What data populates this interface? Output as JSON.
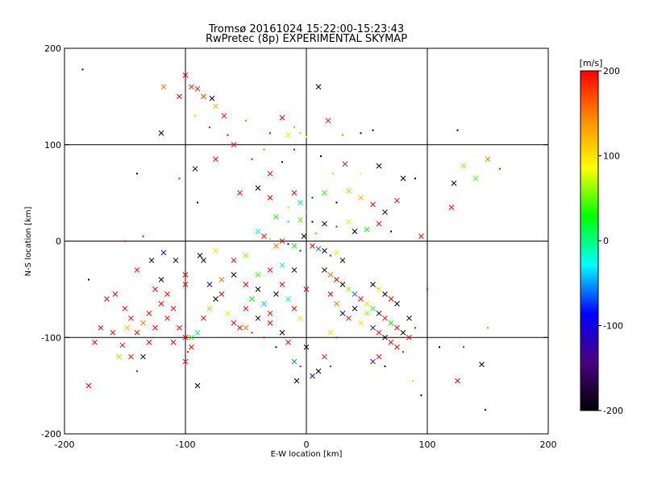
{
  "colors": {
    "background": "#ffffff",
    "axes": "#000000",
    "grid": "#000000",
    "colorbar_stops": [
      "#000000",
      "#4b0082",
      "#0000ff",
      "#00ffff",
      "#00ff00",
      "#ffff00",
      "#ff8c00",
      "#ff0000"
    ]
  },
  "chart_data": {
    "type": "scatter",
    "title": "Tromsø 20161024 15:22:00-15:23:43",
    "subtitle": "RwPretec (8p) EXPERIMENTAL SKYMAP",
    "xlabel": "E-W location [km]",
    "ylabel": "N-S location [km]",
    "xlim": [
      -200,
      200
    ],
    "ylim": [
      -200,
      200
    ],
    "xticks": [
      "-200",
      "-100",
      "0",
      "100",
      "200"
    ],
    "yticks": [
      "-200",
      "-100",
      "0",
      "100",
      "200"
    ],
    "grid": true,
    "colorbar": {
      "label": "[m/s]",
      "range": [
        -200,
        200
      ],
      "ticks": [
        "-200",
        "-100",
        "0",
        "100",
        "200"
      ]
    },
    "marker_legend": "x = large marker, dot = small marker",
    "points": [
      [
        -185,
        178,
        -200,
        0
      ],
      [
        -118,
        160,
        150,
        1
      ],
      [
        -105,
        150,
        200,
        1
      ],
      [
        -100,
        172,
        200,
        1
      ],
      [
        -95,
        160,
        180,
        1
      ],
      [
        -90,
        158,
        200,
        1
      ],
      [
        -85,
        150,
        170,
        1
      ],
      [
        -78,
        148,
        -200,
        1
      ],
      [
        -75,
        140,
        120,
        1
      ],
      [
        -68,
        130,
        200,
        1
      ],
      [
        -120,
        112,
        -200,
        1
      ],
      [
        -92,
        130,
        60,
        0
      ],
      [
        -80,
        118,
        200,
        0
      ],
      [
        -60,
        100,
        200,
        1
      ],
      [
        -45,
        85,
        200,
        0
      ],
      [
        -35,
        95,
        150,
        0
      ],
      [
        -30,
        112,
        200,
        0
      ],
      [
        -20,
        128,
        200,
        1
      ],
      [
        -15,
        110,
        100,
        1
      ],
      [
        -10,
        118,
        40,
        0
      ],
      [
        -5,
        112,
        120,
        0
      ],
      [
        0,
        108,
        80,
        0
      ],
      [
        10,
        160,
        -200,
        1
      ],
      [
        18,
        125,
        200,
        1
      ],
      [
        30,
        110,
        150,
        0
      ],
      [
        45,
        112,
        -200,
        0
      ],
      [
        55,
        115,
        -200,
        0
      ],
      [
        125,
        115,
        -200,
        0
      ],
      [
        150,
        85,
        150,
        1
      ],
      [
        130,
        78,
        60,
        1
      ],
      [
        140,
        65,
        50,
        1
      ],
      [
        160,
        75,
        200,
        0
      ],
      [
        122,
        60,
        -200,
        1
      ],
      [
        120,
        35,
        200,
        1
      ],
      [
        90,
        65,
        -200,
        0
      ],
      [
        80,
        65,
        -200,
        1
      ],
      [
        60,
        78,
        -200,
        1
      ],
      [
        45,
        70,
        80,
        0
      ],
      [
        -92,
        75,
        -200,
        1
      ],
      [
        -75,
        85,
        200,
        1
      ],
      [
        -140,
        70,
        -200,
        0
      ],
      [
        -105,
        65,
        200,
        0
      ],
      [
        -90,
        40,
        -200,
        0
      ],
      [
        -55,
        50,
        200,
        1
      ],
      [
        -40,
        55,
        -200,
        1
      ],
      [
        -30,
        45,
        200,
        1
      ],
      [
        -15,
        35,
        60,
        0
      ],
      [
        -10,
        50,
        200,
        1
      ],
      [
        -5,
        40,
        0,
        1
      ],
      [
        0,
        30,
        -30,
        0
      ],
      [
        5,
        45,
        -80,
        0
      ],
      [
        15,
        50,
        40,
        1
      ],
      [
        25,
        40,
        -200,
        0
      ],
      [
        35,
        52,
        60,
        1
      ],
      [
        45,
        45,
        120,
        1
      ],
      [
        55,
        38,
        200,
        1
      ],
      [
        65,
        30,
        -200,
        1
      ],
      [
        75,
        42,
        200,
        1
      ],
      [
        -25,
        25,
        30,
        1
      ],
      [
        -15,
        20,
        -40,
        0
      ],
      [
        -5,
        22,
        50,
        1
      ],
      [
        5,
        20,
        -200,
        0
      ],
      [
        15,
        18,
        -200,
        1
      ],
      [
        25,
        15,
        200,
        0
      ],
      [
        35,
        20,
        100,
        1
      ],
      [
        40,
        10,
        -200,
        1
      ],
      [
        50,
        12,
        30,
        1
      ],
      [
        60,
        18,
        200,
        1
      ],
      [
        70,
        10,
        -200,
        0
      ],
      [
        95,
        5,
        200,
        1
      ],
      [
        -40,
        10,
        -20,
        1
      ],
      [
        -35,
        5,
        200,
        1
      ],
      [
        -30,
        2,
        60,
        0
      ],
      [
        -25,
        -5,
        150,
        1
      ],
      [
        -20,
        0,
        200,
        1
      ],
      [
        -15,
        -3,
        -200,
        0
      ],
      [
        -10,
        -5,
        20,
        1
      ],
      [
        -5,
        -10,
        -80,
        0
      ],
      [
        5,
        -5,
        200,
        1
      ],
      [
        10,
        -8,
        -60,
        1
      ],
      [
        15,
        -10,
        -200,
        1
      ],
      [
        20,
        -15,
        200,
        0
      ],
      [
        25,
        -12,
        80,
        1
      ],
      [
        30,
        -20,
        -200,
        1
      ],
      [
        -140,
        -30,
        200,
        1
      ],
      [
        -128,
        -20,
        -200,
        1
      ],
      [
        -118,
        -12,
        -80,
        1
      ],
      [
        -108,
        -20,
        -200,
        1
      ],
      [
        -100,
        -35,
        200,
        1
      ],
      [
        -165,
        -60,
        200,
        1
      ],
      [
        -158,
        -55,
        200,
        1
      ],
      [
        -150,
        -70,
        200,
        1
      ],
      [
        -145,
        -80,
        200,
        1
      ],
      [
        -140,
        -95,
        200,
        1
      ],
      [
        -135,
        -85,
        150,
        1
      ],
      [
        -130,
        -75,
        200,
        1
      ],
      [
        -125,
        -90,
        200,
        1
      ],
      [
        -120,
        -65,
        200,
        1
      ],
      [
        -115,
        -80,
        200,
        1
      ],
      [
        -110,
        -70,
        200,
        1
      ],
      [
        -105,
        -90,
        200,
        1
      ],
      [
        -100,
        -100,
        200,
        1
      ],
      [
        -95,
        -110,
        200,
        1
      ],
      [
        -90,
        -95,
        0,
        1
      ],
      [
        -85,
        -80,
        200,
        1
      ],
      [
        -80,
        -70,
        60,
        1
      ],
      [
        -75,
        -60,
        -200,
        1
      ],
      [
        -70,
        -55,
        200,
        1
      ],
      [
        -65,
        -75,
        100,
        1
      ],
      [
        -60,
        -85,
        200,
        1
      ],
      [
        -55,
        -90,
        200,
        1
      ],
      [
        -50,
        -70,
        200,
        1
      ],
      [
        -45,
        -60,
        30,
        1
      ],
      [
        -40,
        -50,
        -200,
        1
      ],
      [
        -35,
        -65,
        -40,
        1
      ],
      [
        -30,
        -75,
        200,
        1
      ],
      [
        -25,
        -55,
        -200,
        1
      ],
      [
        -20,
        -45,
        200,
        1
      ],
      [
        -15,
        -60,
        -20,
        1
      ],
      [
        -10,
        -70,
        200,
        1
      ],
      [
        -5,
        -80,
        100,
        1
      ],
      [
        0,
        -50,
        200,
        1
      ],
      [
        -80,
        -45,
        -100,
        1
      ],
      [
        -70,
        -40,
        150,
        1
      ],
      [
        -60,
        -35,
        -200,
        1
      ],
      [
        -50,
        -45,
        200,
        1
      ],
      [
        -40,
        -35,
        40,
        1
      ],
      [
        -30,
        -30,
        200,
        1
      ],
      [
        -20,
        -25,
        0,
        1
      ],
      [
        -10,
        -30,
        -200,
        1
      ],
      [
        -60,
        -20,
        200,
        1
      ],
      [
        -50,
        -15,
        60,
        1
      ],
      [
        -88,
        -15,
        -200,
        1
      ],
      [
        -75,
        -10,
        100,
        1
      ],
      [
        -180,
        -150,
        200,
        1
      ],
      [
        -175,
        -105,
        200,
        1
      ],
      [
        -170,
        -90,
        200,
        1
      ],
      [
        -155,
        -120,
        60,
        1
      ],
      [
        -148,
        -90,
        120,
        1
      ],
      [
        -145,
        -120,
        200,
        1
      ],
      [
        -140,
        -135,
        200,
        0
      ],
      [
        -135,
        -120,
        -200,
        1
      ],
      [
        -130,
        -105,
        200,
        1
      ],
      [
        -100,
        -125,
        200,
        1
      ],
      [
        -95,
        -100,
        40,
        1
      ],
      [
        -90,
        -150,
        -200,
        1
      ],
      [
        -98,
        -115,
        200,
        0
      ],
      [
        -110,
        -105,
        200,
        1
      ],
      [
        -50,
        -90,
        150,
        1
      ],
      [
        -45,
        -95,
        200,
        0
      ],
      [
        -40,
        -80,
        -200,
        1
      ],
      [
        -35,
        -100,
        200,
        0
      ],
      [
        -30,
        -85,
        200,
        1
      ],
      [
        -25,
        -110,
        -200,
        0
      ],
      [
        -20,
        -95,
        -200,
        1
      ],
      [
        -15,
        -105,
        200,
        1
      ],
      [
        -10,
        -125,
        -60,
        1
      ],
      [
        -5,
        -130,
        200,
        0
      ],
      [
        0,
        -110,
        -200,
        1
      ],
      [
        5,
        -140,
        -100,
        1
      ],
      [
        10,
        -135,
        -200,
        1
      ],
      [
        15,
        -120,
        200,
        1
      ],
      [
        20,
        -130,
        200,
        0
      ],
      [
        -8,
        -145,
        -200,
        1
      ],
      [
        15,
        -30,
        -200,
        1
      ],
      [
        20,
        -35,
        150,
        1
      ],
      [
        25,
        -40,
        200,
        1
      ],
      [
        30,
        -45,
        -200,
        1
      ],
      [
        35,
        -50,
        60,
        1
      ],
      [
        40,
        -55,
        -60,
        1
      ],
      [
        45,
        -60,
        200,
        1
      ],
      [
        50,
        -65,
        100,
        1
      ],
      [
        55,
        -70,
        40,
        1
      ],
      [
        60,
        -75,
        -200,
        1
      ],
      [
        65,
        -80,
        200,
        1
      ],
      [
        70,
        -85,
        30,
        1
      ],
      [
        75,
        -90,
        200,
        1
      ],
      [
        80,
        -95,
        -200,
        1
      ],
      [
        85,
        -100,
        200,
        1
      ],
      [
        20,
        -55,
        200,
        1
      ],
      [
        25,
        -65,
        150,
        1
      ],
      [
        30,
        -75,
        -200,
        1
      ],
      [
        35,
        -80,
        200,
        1
      ],
      [
        40,
        -70,
        -200,
        1
      ],
      [
        45,
        -85,
        100,
        1
      ],
      [
        50,
        -75,
        60,
        1
      ],
      [
        55,
        -90,
        -80,
        1
      ],
      [
        60,
        -95,
        200,
        1
      ],
      [
        65,
        -100,
        -200,
        1
      ],
      [
        70,
        -105,
        200,
        1
      ],
      [
        75,
        -110,
        200,
        1
      ],
      [
        80,
        -115,
        200,
        0
      ],
      [
        85,
        -80,
        -200,
        1
      ],
      [
        90,
        -90,
        200,
        0
      ],
      [
        55,
        -45,
        -200,
        1
      ],
      [
        60,
        -50,
        100,
        1
      ],
      [
        65,
        -55,
        -200,
        1
      ],
      [
        70,
        -60,
        200,
        1
      ],
      [
        75,
        -65,
        -200,
        1
      ],
      [
        20,
        -95,
        100,
        1
      ],
      [
        25,
        -100,
        200,
        0
      ],
      [
        55,
        -125,
        -100,
        1
      ],
      [
        60,
        -120,
        200,
        1
      ],
      [
        65,
        -130,
        -200,
        0
      ],
      [
        88,
        -145,
        60,
        0
      ],
      [
        95,
        -160,
        -200,
        0
      ],
      [
        100,
        -50,
        200,
        0
      ],
      [
        110,
        -110,
        -200,
        0
      ],
      [
        125,
        -145,
        200,
        1
      ],
      [
        130,
        -110,
        200,
        0
      ],
      [
        145,
        -128,
        -200,
        1
      ],
      [
        150,
        -90,
        150,
        0
      ],
      [
        148,
        -175,
        -200,
        0
      ],
      [
        -120,
        -40,
        -200,
        1
      ],
      [
        -125,
        -50,
        200,
        1
      ],
      [
        -115,
        -55,
        200,
        1
      ],
      [
        -160,
        -95,
        200,
        1
      ],
      [
        -152,
        -108,
        200,
        1
      ],
      [
        -85,
        -20,
        -200,
        1
      ],
      [
        -100,
        -45,
        200,
        1
      ],
      [
        -135,
        5,
        200,
        0
      ],
      [
        -150,
        0,
        200,
        0
      ],
      [
        -180,
        -40,
        -200,
        0
      ],
      [
        -30,
        70,
        200,
        1
      ],
      [
        -20,
        82,
        -200,
        0
      ],
      [
        -65,
        110,
        200,
        0
      ],
      [
        -50,
        125,
        150,
        0
      ],
      [
        -10,
        95,
        200,
        0
      ],
      [
        12,
        88,
        -200,
        0
      ],
      [
        22,
        70,
        60,
        0
      ],
      [
        32,
        80,
        200,
        1
      ],
      [
        -2,
        5,
        -200,
        1
      ],
      [
        8,
        8,
        40,
        0
      ]
    ]
  }
}
